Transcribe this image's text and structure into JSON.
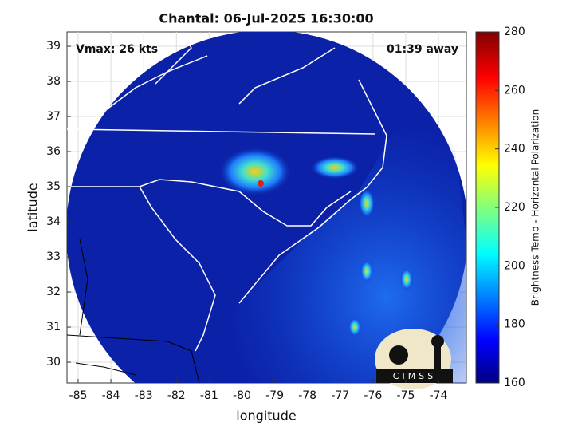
{
  "chart_data": {
    "type": "map",
    "title": "Chantal: 06-Jul-2025 16:30:00",
    "annotations": [
      "Vmax: 26 kts",
      "01:39 away"
    ],
    "xlabel": "longitude",
    "ylabel": "latitude",
    "xlim": [
      -85.34,
      -73.15
    ],
    "ylim": [
      29.41,
      39.41
    ],
    "xticks": [
      -85,
      -84,
      -83,
      -82,
      -81,
      -80,
      -79,
      -78,
      -77,
      -76,
      -75,
      -74
    ],
    "yticks": [
      30,
      31,
      32,
      33,
      34,
      35,
      36,
      37,
      38,
      39
    ],
    "grid": true,
    "colorbar": {
      "label": "Brightness Temp - Horizontal Polarization",
      "lim": [
        160,
        280
      ],
      "ticks": [
        160,
        180,
        200,
        220,
        240,
        260,
        280
      ],
      "colormap": "jet"
    },
    "logo": "CIMSS"
  }
}
